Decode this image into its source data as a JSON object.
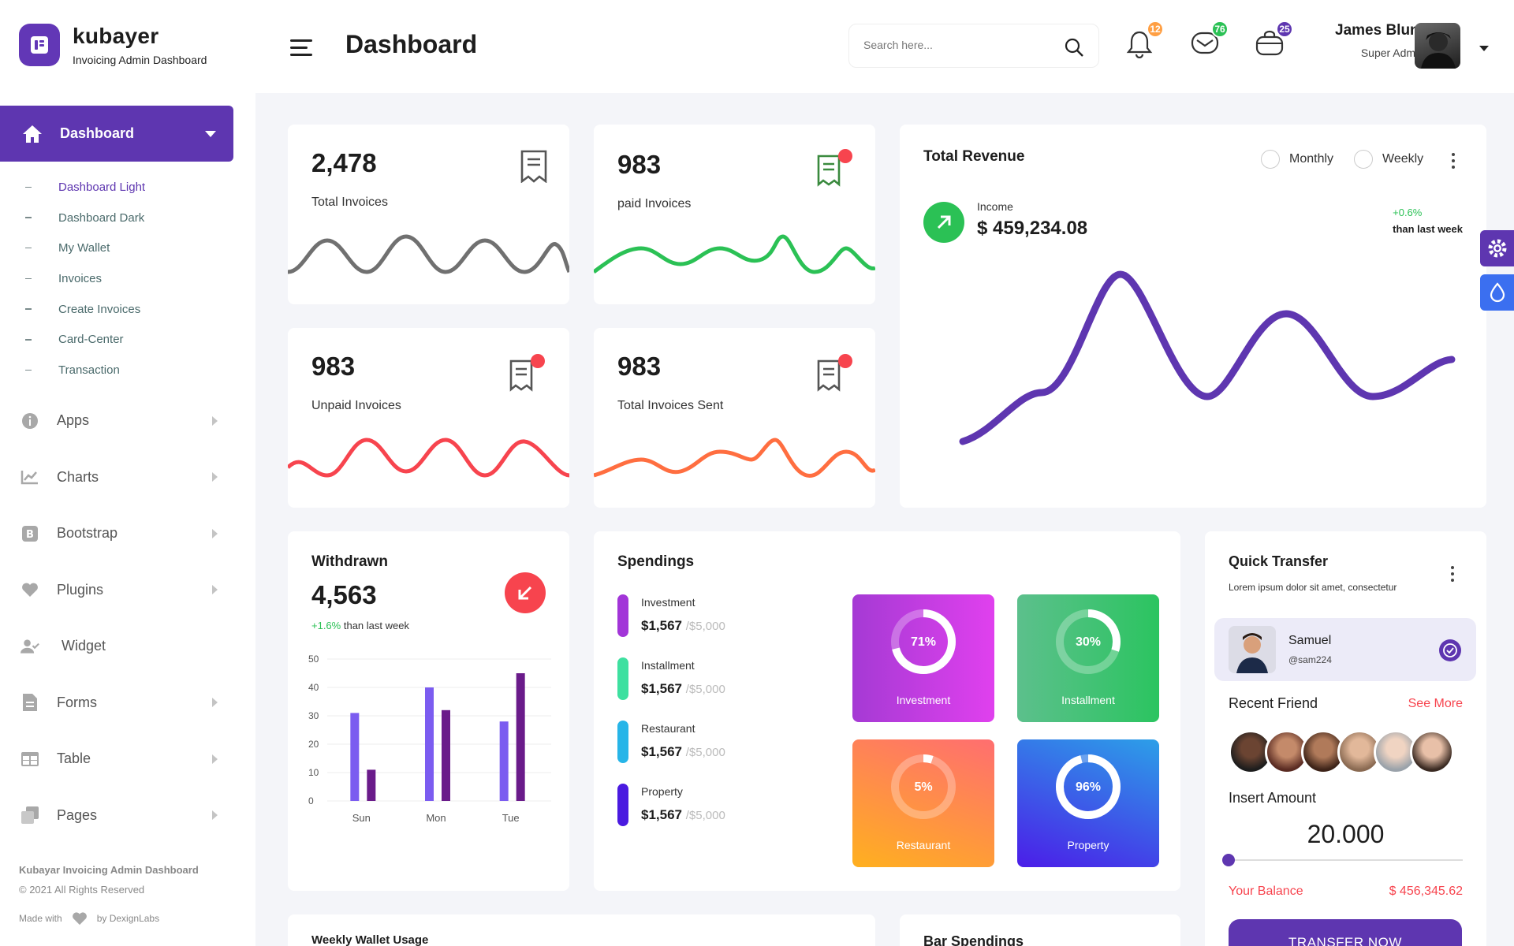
{
  "brand": {
    "name": "kubayer",
    "subtitle": "Invoicing Admin Dashboard"
  },
  "sidebar": {
    "active": {
      "label": "Dashboard",
      "icon": "home-icon"
    },
    "subitems": [
      {
        "label": "Dashboard Light",
        "current": true
      },
      {
        "label": "Dashboard Dark"
      },
      {
        "label": "My Wallet"
      },
      {
        "label": "Invoices"
      },
      {
        "label": "Create Invoices"
      },
      {
        "label": "Card-Center"
      },
      {
        "label": "Transaction"
      }
    ],
    "items": [
      {
        "label": "Apps",
        "icon": "info-icon"
      },
      {
        "label": "Charts",
        "icon": "chart-icon"
      },
      {
        "label": "Bootstrap",
        "icon": "bootstrap-icon"
      },
      {
        "label": "Plugins",
        "icon": "heart-icon"
      },
      {
        "label": "Widget",
        "icon": "user-check-icon"
      },
      {
        "label": "Forms",
        "icon": "file-icon"
      },
      {
        "label": "Table",
        "icon": "table-icon"
      },
      {
        "label": "Pages",
        "icon": "pages-icon"
      }
    ],
    "footer": {
      "title": "Kubayar Invoicing Admin Dashboard",
      "copyright": "© 2021 All Rights Reserved",
      "made_with": "Made with",
      "by": "by DexignLabs"
    }
  },
  "header": {
    "title": "Dashboard",
    "search_placeholder": "Search here...",
    "badges": {
      "notifications": "12",
      "messages": "76",
      "cart": "25"
    },
    "badge_colors": {
      "notifications": "#ff9f43",
      "messages": "#2bc155",
      "cart": "#5e36b0"
    },
    "user": {
      "name": "James Blunt",
      "role": "Super Admin"
    }
  },
  "stats": [
    {
      "value": "2,478",
      "label": "Total Invoices",
      "color": "#707070"
    },
    {
      "value": "983",
      "label": "paid Invoices",
      "color": "#2bc155"
    },
    {
      "value": "983",
      "label": "Unpaid Invoices",
      "color": "#f7444e"
    },
    {
      "value": "983",
      "label": "Total Invoices Sent",
      "color": "#ff6e40"
    }
  ],
  "revenue": {
    "title": "Total Revenue",
    "option_monthly": "Monthly",
    "option_weekly": "Weekly",
    "income_label": "Income",
    "income_value": "$ 459,234.08",
    "change": "+0.6%",
    "change_label": "than last week",
    "line_color": "#5e36b0"
  },
  "withdrawn": {
    "title": "Withdrawn",
    "value": "4,563",
    "change": "+1.6%",
    "change_label": "than last week"
  },
  "chart_data": {
    "type": "bar",
    "categories": [
      "Sun",
      "Mon",
      "Tue"
    ],
    "series": [
      {
        "values": [
          31,
          40,
          28
        ],
        "color": "#7b5cf0"
      },
      {
        "values": [
          11,
          32,
          45
        ],
        "color": "#6a1b8a"
      }
    ],
    "ylim": [
      0,
      50
    ],
    "yticks": [
      "0",
      "10",
      "20",
      "30",
      "40",
      "50"
    ],
    "grid": true
  },
  "spendings": {
    "title": "Spendings",
    "items": [
      {
        "name": "Investment",
        "value": "$1,567",
        "total": "/$5,000",
        "color": "#a235d8"
      },
      {
        "name": "Installment",
        "value": "$1,567",
        "total": "/$5,000",
        "color": "#3ee0a0"
      },
      {
        "name": "Restaurant",
        "value": "$1,567",
        "total": "/$5,000",
        "color": "#27b5e8"
      },
      {
        "name": "Property",
        "value": "$1,567",
        "total": "/$5,000",
        "color": "#4a1ae0"
      }
    ],
    "tiles": [
      {
        "label": "Investment",
        "percent": 71,
        "text": "71%"
      },
      {
        "label": "Installment",
        "percent": 30,
        "text": "30%"
      },
      {
        "label": "Restaurant",
        "percent": 5,
        "text": "5%"
      },
      {
        "label": "Property",
        "percent": 96,
        "text": "96%"
      }
    ]
  },
  "quick_transfer": {
    "title": "Quick Transfer",
    "subtitle": "Lorem ipsum dolor sit amet, consectetur",
    "contact": {
      "name": "Samuel",
      "handle": "@sam224"
    },
    "recent_label": "Recent Friend",
    "see_more": "See More",
    "insert_label": "Insert Amount",
    "amount": "20.000",
    "slider_fraction": 0,
    "balance_label": "Your Balance",
    "balance_value": "$ 456,345.62",
    "button": "TRANSFER NOW"
  },
  "bottom": {
    "weekly": "Weekly Wallet Usage",
    "bar": "Bar Spendings"
  }
}
